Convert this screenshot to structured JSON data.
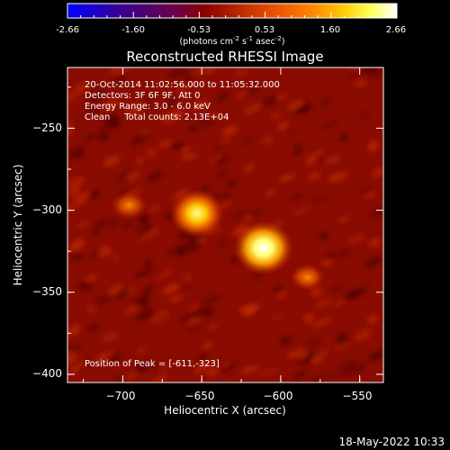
{
  "colorbar": {
    "ticks": [
      "-2.66",
      "-1.60",
      "-0.53",
      "0.53",
      "1.60",
      "2.66"
    ],
    "unit_label": [
      "(photons cm",
      "-2",
      " s",
      "-1",
      " asec",
      "-2",
      ")"
    ],
    "range": [
      -2.66,
      2.66
    ],
    "colormap": [
      "#0000ff",
      "#1d00c8",
      "#3a0090",
      "#540068",
      "#700044",
      "#8a0000",
      "#b02000",
      "#d84000",
      "#f46000",
      "#ff8a00",
      "#ffc800",
      "#ffff50",
      "#ffffff"
    ]
  },
  "chart_data": {
    "type": "heatmap",
    "title": "Reconstructed RHESSI Image",
    "xlabel": "Heliocentric X (arcsec)",
    "ylabel": "Heliocentric Y (arcsec)",
    "xlim": [
      -735,
      -535
    ],
    "ylim": [
      -405,
      -213
    ],
    "xticks": [
      {
        "v": -700,
        "label": "−700"
      },
      {
        "v": -650,
        "label": "−650"
      },
      {
        "v": -600,
        "label": "−600"
      },
      {
        "v": -550,
        "label": "−550"
      }
    ],
    "yticks": [
      {
        "v": -250,
        "label": "−250"
      },
      {
        "v": -300,
        "label": "−300"
      },
      {
        "v": -350,
        "label": "−350"
      },
      {
        "v": -400,
        "label": "−400"
      }
    ],
    "sources": [
      {
        "x": -611,
        "y": -323,
        "intensity": 1.0
      },
      {
        "x": -653,
        "y": -302,
        "intensity": 0.85
      },
      {
        "x": -696,
        "y": -297,
        "intensity": 0.45
      },
      {
        "x": -583,
        "y": -341,
        "intensity": 0.4
      }
    ],
    "annotations": [
      "20-Oct-2014 11:02:56.000 to 11:05:32.000",
      "Detectors: 3F 6F 9F, Att 0",
      "Energy Range: 3.0 - 6.0 keV",
      "Clean     Total counts: 2.13E+04"
    ],
    "peak_label": "Position of Peak = [-611,-323]"
  },
  "footer": {
    "date": "18-May-2022 10:33"
  }
}
